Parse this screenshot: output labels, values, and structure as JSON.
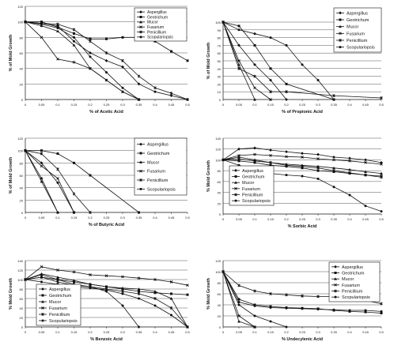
{
  "chart_data": [
    {
      "type": "line",
      "xlabel": "% of Acetic Acid",
      "ylabel": "% of Mold Growth",
      "xlim": [
        0,
        0.5
      ],
      "ylim": [
        0,
        120
      ],
      "xticks": [
        "0",
        "0.05",
        "0.1",
        "0.15",
        "0.2",
        "0.25",
        "0.3",
        "0.35",
        "0.4",
        "0.45",
        "0.5"
      ],
      "yticks": [
        "0",
        "20",
        "40",
        "60",
        "80",
        "100",
        "120"
      ],
      "legend": "top-right",
      "series": [
        {
          "name": "Aspergillus",
          "x": [
            0,
            0.05,
            0.1,
            0.15,
            0.2,
            0.25,
            0.3,
            0.35,
            0.4,
            0.45,
            0.5
          ],
          "y": [
            100,
            98,
            95,
            75,
            60,
            50,
            42,
            20,
            10,
            5,
            0
          ]
        },
        {
          "name": "Geotrichum",
          "x": [
            0,
            0.05,
            0.1,
            0.15,
            0.2,
            0.25,
            0.3,
            0.35,
            0.4,
            0.45,
            0.5
          ],
          "y": [
            100,
            100,
            93,
            85,
            78,
            78,
            80,
            80,
            75,
            62,
            50
          ]
        },
        {
          "name": "Mucor",
          "x": [
            0,
            0.05,
            0.1,
            0.15,
            0.2,
            0.25,
            0.3,
            0.35
          ],
          "y": [
            100,
            95,
            88,
            70,
            40,
            25,
            10,
            0
          ]
        },
        {
          "name": "Fusarium",
          "x": [
            0,
            0.05,
            0.1,
            0.15,
            0.2,
            0.25,
            0.3,
            0.35
          ],
          "y": [
            100,
            80,
            52,
            48,
            40,
            25,
            10,
            0
          ]
        },
        {
          "name": "Penicillium",
          "x": [
            0,
            0.05,
            0.1,
            0.15,
            0.2,
            0.25,
            0.3,
            0.35,
            0.4,
            0.45,
            0.5
          ],
          "y": [
            100,
            98,
            97,
            90,
            75,
            60,
            50,
            30,
            15,
            8,
            0
          ]
        },
        {
          "name": "Scopulariopsis",
          "x": [
            0,
            0.05,
            0.1,
            0.15,
            0.2,
            0.25,
            0.3,
            0.35
          ],
          "y": [
            100,
            97,
            92,
            80,
            55,
            35,
            15,
            0
          ]
        }
      ]
    },
    {
      "type": "line",
      "xlabel": "% of Propionic Acid",
      "ylabel": "% of Mold Growth",
      "xlim": [
        0,
        0.5
      ],
      "ylim": [
        0,
        100
      ],
      "xticks": [
        "0",
        "0.05",
        "0.1",
        "0.15",
        "0.2",
        "0.25",
        "0.3",
        "0.35",
        "0.4",
        "0.45",
        "0.5"
      ],
      "yticks": [
        "0",
        "10",
        "20",
        "30",
        "40",
        "50",
        "60",
        "70",
        "80",
        "90",
        "100"
      ],
      "legend": "top-right",
      "series": [
        {
          "name": "Aspergillus",
          "x": [
            0,
            0.05,
            0.1,
            0.15,
            0.2
          ],
          "y": [
            100,
            70,
            45,
            25,
            0
          ]
        },
        {
          "name": "Geotrichum",
          "x": [
            0,
            0.05,
            0.1,
            0.15,
            0.2,
            0.35
          ],
          "y": [
            100,
            95,
            70,
            40,
            20,
            0
          ]
        },
        {
          "name": "Mucor",
          "x": [
            0,
            0.05,
            0.1
          ],
          "y": [
            100,
            45,
            0
          ]
        },
        {
          "name": "Fusarium",
          "x": [
            0,
            0.05,
            0.1,
            0.15
          ],
          "y": [
            100,
            50,
            15,
            0
          ]
        },
        {
          "name": "Penicillium",
          "x": [
            0,
            0.05,
            0.1,
            0.15,
            0.2,
            0.35,
            0.5
          ],
          "y": [
            100,
            40,
            30,
            10,
            10,
            5,
            2
          ]
        },
        {
          "name": "Scopulariopsis",
          "x": [
            0,
            0.05,
            0.1,
            0.15,
            0.2,
            0.25,
            0.3,
            0.35
          ],
          "y": [
            100,
            90,
            85,
            80,
            70,
            45,
            25,
            0
          ]
        }
      ]
    },
    {
      "type": "line",
      "xlabel": "% of Butyric Acid",
      "ylabel": "% of Mold Growth",
      "xlim": [
        0,
        0.5
      ],
      "ylim": [
        0,
        120
      ],
      "xticks": [
        "0",
        "0.05",
        "0.1",
        "0.15",
        "0.2",
        "0.25",
        "0.3",
        "0.35",
        "0.4",
        "0.45",
        "0.5"
      ],
      "yticks": [
        "0",
        "20",
        "40",
        "60",
        "80",
        "100",
        "120"
      ],
      "legend": "top-right",
      "series": [
        {
          "name": "Aspergillus",
          "x": [
            0,
            0.05,
            0.1,
            0.15
          ],
          "y": [
            100,
            80,
            48,
            0
          ]
        },
        {
          "name": "Geotrichum",
          "x": [
            0,
            0.05,
            0.1,
            0.15,
            0.2,
            0.35
          ],
          "y": [
            100,
            100,
            95,
            80,
            60,
            0
          ]
        },
        {
          "name": "Mucor",
          "x": [
            0,
            0.05,
            0.1
          ],
          "y": [
            100,
            50,
            0
          ]
        },
        {
          "name": "Fusarium",
          "x": [
            0,
            0.05,
            0.1,
            0.15
          ],
          "y": [
            100,
            75,
            55,
            0
          ]
        },
        {
          "name": "Penicillium",
          "x": [
            0,
            0.05,
            0.1,
            0.15,
            0.2
          ],
          "y": [
            100,
            95,
            70,
            30,
            0
          ]
        },
        {
          "name": "Scopulariopsis",
          "x": [
            0,
            0.05,
            0.1
          ],
          "y": [
            100,
            55,
            0
          ]
        }
      ]
    },
    {
      "type": "line",
      "xlabel": "% Sorbic Acid",
      "ylabel": "% Mold Growth",
      "xlim": [
        0,
        0.5
      ],
      "ylim": [
        0,
        140
      ],
      "xticks": [
        "0",
        "0.05",
        "0.1",
        "0.15",
        "0.2",
        "0.25",
        "0.3",
        "0.35",
        "0.4",
        "0.45",
        "0.5"
      ],
      "yticks": [
        "0",
        "20",
        "40",
        "60",
        "80",
        "100",
        "120",
        "140"
      ],
      "legend": "bottom-left",
      "series": [
        {
          "name": "Aspergillus",
          "x": [
            0,
            0.05,
            0.1,
            0.15,
            0.2,
            0.25,
            0.3,
            0.35,
            0.4,
            0.45,
            0.5
          ],
          "y": [
            100,
            120,
            122,
            118,
            115,
            112,
            110,
            105,
            103,
            100,
            95
          ]
        },
        {
          "name": "Geotrichum",
          "x": [
            0,
            0.05,
            0.1,
            0.15,
            0.2,
            0.25,
            0.3,
            0.35,
            0.4,
            0.45,
            0.5
          ],
          "y": [
            100,
            98,
            95,
            90,
            88,
            85,
            80,
            78,
            75,
            72,
            70
          ]
        },
        {
          "name": "Mucor",
          "x": [
            0,
            0.05,
            0.1,
            0.15,
            0.2,
            0.25,
            0.3,
            0.35,
            0.4,
            0.45,
            0.5
          ],
          "y": [
            100,
            105,
            100,
            95,
            92,
            90,
            88,
            85,
            82,
            78,
            75
          ]
        },
        {
          "name": "Fusarium",
          "x": [
            0,
            0.05,
            0.1,
            0.15,
            0.2,
            0.25,
            0.3,
            0.35,
            0.4,
            0.45,
            0.5
          ],
          "y": [
            100,
            108,
            110,
            108,
            106,
            105,
            102,
            100,
            98,
            95,
            92
          ]
        },
        {
          "name": "Penicillium",
          "x": [
            0,
            0.05,
            0.1,
            0.15,
            0.2,
            0.25,
            0.3,
            0.35,
            0.4,
            0.45,
            0.5
          ],
          "y": [
            100,
            102,
            98,
            95,
            90,
            88,
            85,
            80,
            76,
            72,
            68
          ]
        },
        {
          "name": "Scopulariopsis",
          "x": [
            0,
            0.05,
            0.1,
            0.15,
            0.2,
            0.25,
            0.3,
            0.35,
            0.4,
            0.45,
            0.5
          ],
          "y": [
            100,
            90,
            80,
            75,
            72,
            70,
            65,
            50,
            35,
            15,
            5
          ]
        }
      ]
    },
    {
      "type": "line",
      "xlabel": "% Benzoic Acid",
      "ylabel": "% Mold Growth",
      "xlim": [
        0,
        0.5
      ],
      "ylim": [
        0,
        140
      ],
      "xticks": [
        "0",
        "0.05",
        "0.1",
        "0.15",
        "0.2",
        "0.25",
        "0.3",
        "0.35",
        "0.4",
        "0.45",
        "0.5"
      ],
      "yticks": [
        "0",
        "20",
        "40",
        "60",
        "80",
        "100",
        "120",
        "140"
      ],
      "legend": "bottom-left",
      "series": [
        {
          "name": "Aspergillus",
          "x": [
            0,
            0.05,
            0.1,
            0.15,
            0.2,
            0.25,
            0.3,
            0.35
          ],
          "y": [
            100,
            110,
            100,
            90,
            85,
            75,
            45,
            0
          ]
        },
        {
          "name": "Geotrichum",
          "x": [
            0,
            0.05,
            0.1,
            0.15,
            0.2,
            0.25,
            0.3,
            0.35,
            0.4,
            0.45,
            0.5
          ],
          "y": [
            100,
            105,
            100,
            95,
            90,
            85,
            80,
            75,
            72,
            70,
            68
          ]
        },
        {
          "name": "Mucor",
          "x": [
            0,
            0.05,
            0.1,
            0.15,
            0.2,
            0.25,
            0.3,
            0.35,
            0.4,
            0.45,
            0.5
          ],
          "y": [
            100,
            112,
            105,
            98,
            90,
            85,
            82,
            80,
            75,
            60,
            0
          ]
        },
        {
          "name": "Fusarium",
          "x": [
            0,
            0.05,
            0.1,
            0.15,
            0.2,
            0.25,
            0.3,
            0.35,
            0.4,
            0.45,
            0.5
          ],
          "y": [
            100,
            127,
            120,
            116,
            110,
            108,
            106,
            103,
            100,
            95,
            88
          ]
        },
        {
          "name": "Penicillium",
          "x": [
            0,
            0.05,
            0.1,
            0.15,
            0.2,
            0.25,
            0.3,
            0.35,
            0.4,
            0.45,
            0.5
          ],
          "y": [
            100,
            105,
            95,
            88,
            85,
            80,
            75,
            70,
            60,
            40,
            0
          ]
        },
        {
          "name": "Scopulariopsis",
          "x": [
            0,
            0.05,
            0.1,
            0.15,
            0.2,
            0.25,
            0.3,
            0.35,
            0.4,
            0.45,
            0.5
          ],
          "y": [
            100,
            95,
            90,
            85,
            82,
            78,
            70,
            60,
            45,
            25,
            0
          ]
        }
      ]
    },
    {
      "type": "line",
      "xlabel": "% Undecylenic Acid",
      "ylabel": "% Mold Growth",
      "xlim": [
        0,
        0.5
      ],
      "ylim": [
        0,
        120
      ],
      "xticks": [
        "0",
        "0.05",
        "0.1",
        "0.15",
        "0.2",
        "0.25",
        "0.3",
        "0.35",
        "0.4",
        "0.45",
        "0.5"
      ],
      "yticks": [
        "0",
        "20",
        "40",
        "60",
        "80",
        "100",
        "120"
      ],
      "legend": "top-right",
      "series": [
        {
          "name": "Aspergillus",
          "x": [
            0,
            0.05,
            0.1,
            0.15,
            0.2
          ],
          "y": [
            100,
            40,
            20,
            10,
            0
          ]
        },
        {
          "name": "Geotrichum",
          "x": [
            0,
            0.05,
            0.1,
            0.15,
            0.2,
            0.25,
            0.3,
            0.35,
            0.4,
            0.45,
            0.5
          ],
          "y": [
            100,
            50,
            40,
            37,
            35,
            34,
            33,
            30,
            28,
            27,
            25
          ]
        },
        {
          "name": "Mucor",
          "x": [
            0,
            0.05,
            0.1
          ],
          "y": [
            100,
            10,
            0
          ]
        },
        {
          "name": "Fusarium",
          "x": [
            0,
            0.05,
            0.1
          ],
          "y": [
            100,
            20,
            0
          ]
        },
        {
          "name": "Penicillium",
          "x": [
            0,
            0.05,
            0.1,
            0.15,
            0.2,
            0.25,
            0.3,
            0.35,
            0.4,
            0.45,
            0.5
          ],
          "y": [
            100,
            75,
            65,
            60,
            58,
            56,
            55,
            55,
            52,
            48,
            42
          ]
        },
        {
          "name": "Scopulariopsis",
          "x": [
            0,
            0.05,
            0.1,
            0.15,
            0.2,
            0.25,
            0.3,
            0.35,
            0.4,
            0.45,
            0.5
          ],
          "y": [
            100,
            45,
            38,
            35,
            34,
            33,
            32,
            31,
            30,
            30,
            28
          ]
        }
      ]
    }
  ]
}
